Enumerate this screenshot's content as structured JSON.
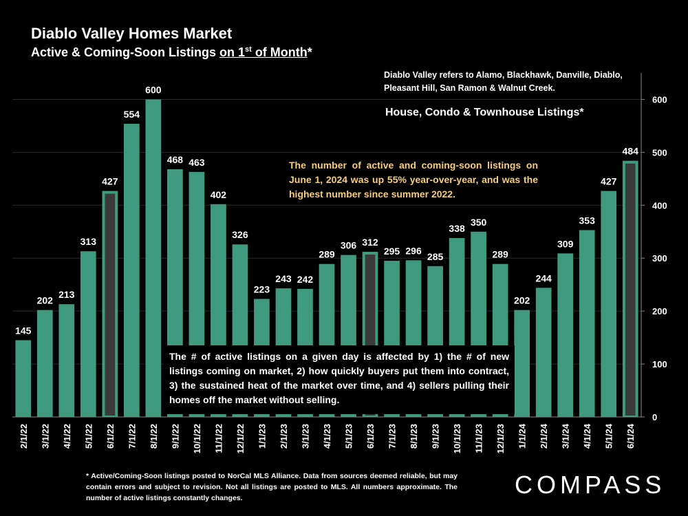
{
  "header": {
    "title": "Diablo Valley Homes Market",
    "subtitle_prefix": "Active & Coming-Soon Listings ",
    "subtitle_underlined": "on 1",
    "subtitle_sup": "st",
    "subtitle_underlined2": " of Month",
    "subtitle_suffix": "*"
  },
  "note": "Diablo Valley refers to Alamo, Blackhawk, Danville, Diablo, Pleasant Hill, San Ramon & Walnut Creek.",
  "listing_types": "House, Condo & Townhouse Listings*",
  "callout": "The number of active and coming-soon listings on June 1, 2024 was up 55% year-over-year, and was the highest number since summer 2022.",
  "explanation": "The # of active listings on a given day is affected by 1) the # of new listings coming on market, 2) how quickly buyers put them into contract, 3) the sustained heat of the market over time, and 4) sellers pulling their homes off the market without selling.",
  "footnote": "* Active/Coming-Soon listings posted to NorCal MLS Alliance. Data from sources deemed reliable, but may contain errors and subject to revision. Not all listings are posted to MLS. All numbers approximate. The number of active listings constantly changes.",
  "logo": "COMPASS",
  "colors": {
    "bar": "#3f9a7f",
    "highlight_bar": "#3a3a3a",
    "highlight_border": "#3f9a7f",
    "grid": "#2a2a2a",
    "callout": "#f5cf7a"
  },
  "chart_data": {
    "type": "bar",
    "title": "Active & Coming-Soon Listings on 1st of Month",
    "categories": [
      "2/1/22",
      "3/1/22",
      "4/1/22",
      "5/1/22",
      "6/1/22",
      "7/1/22",
      "8/1/22",
      "9/1/22",
      "10/1/22",
      "11/1/22",
      "12/1/22",
      "1/1/23",
      "2/1/23",
      "3/1/23",
      "4/1/23",
      "5/1/23",
      "6/1/23",
      "7/1/23",
      "8/1/23",
      "9/1/23",
      "10/1/23",
      "11/1/23",
      "12/1/23",
      "1/1/24",
      "2/1/24",
      "3/1/24",
      "4/1/24",
      "5/1/24",
      "6/1/24"
    ],
    "values": [
      145,
      202,
      213,
      313,
      427,
      554,
      600,
      468,
      463,
      402,
      326,
      223,
      243,
      242,
      289,
      306,
      312,
      295,
      296,
      285,
      338,
      350,
      289,
      202,
      244,
      309,
      353,
      427,
      484
    ],
    "highlighted": [
      "6/1/22",
      "6/1/23",
      "6/1/24"
    ],
    "y_axis_position": "right",
    "ylim": [
      0,
      650
    ],
    "yticks": [
      0,
      100,
      200,
      300,
      400,
      500,
      600
    ],
    "grid": true,
    "xlabel": "",
    "ylabel": ""
  }
}
